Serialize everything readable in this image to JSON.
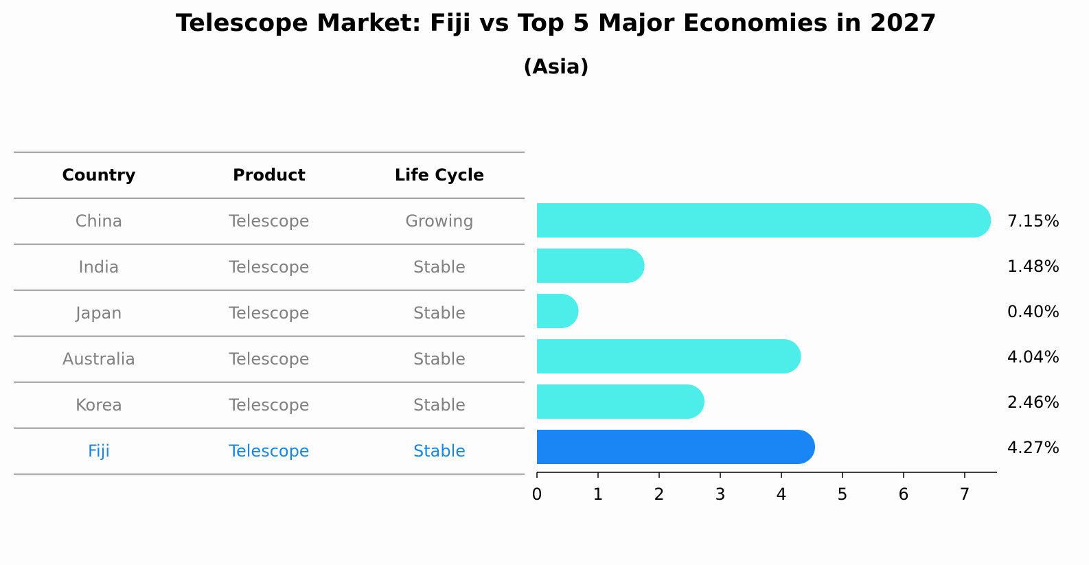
{
  "colors": {
    "bar": "#4deee9",
    "highlight_bar": "#1a86f5",
    "highlight_text": "#1a86e0",
    "muted_text": "#808080"
  },
  "table": {
    "headers": [
      "Country",
      "Product",
      "Life Cycle"
    ],
    "rows": [
      {
        "country": "China",
        "product": "Telescope",
        "life_cycle": "Growing"
      },
      {
        "country": "India",
        "product": "Telescope",
        "life_cycle": "Stable"
      },
      {
        "country": "Japan",
        "product": "Telescope",
        "life_cycle": "Stable"
      },
      {
        "country": "Australia",
        "product": "Telescope",
        "life_cycle": "Stable"
      },
      {
        "country": "Korea",
        "product": "Telescope",
        "life_cycle": "Stable"
      },
      {
        "country": "Fiji",
        "product": "Telescope",
        "life_cycle": "Stable"
      }
    ]
  },
  "chart_data": {
    "type": "bar",
    "orientation": "horizontal",
    "title": "Telescope Market: Fiji vs Top 5 Major Economies in 2027",
    "subtitle": "(Asia)",
    "categories": [
      "China",
      "India",
      "Japan",
      "Australia",
      "Korea",
      "Fiji"
    ],
    "values": [
      7.15,
      1.48,
      0.4,
      4.04,
      2.46,
      4.27
    ],
    "value_labels": [
      "7.15%",
      "1.48%",
      "0.40%",
      "4.04%",
      "2.46%",
      "4.27%"
    ],
    "highlight": "Fiji",
    "xlim": [
      0,
      7.5
    ],
    "xticks": [
      0,
      1,
      2,
      3,
      4,
      5,
      6,
      7
    ],
    "xlabel": "",
    "ylabel": "",
    "grid": false
  }
}
